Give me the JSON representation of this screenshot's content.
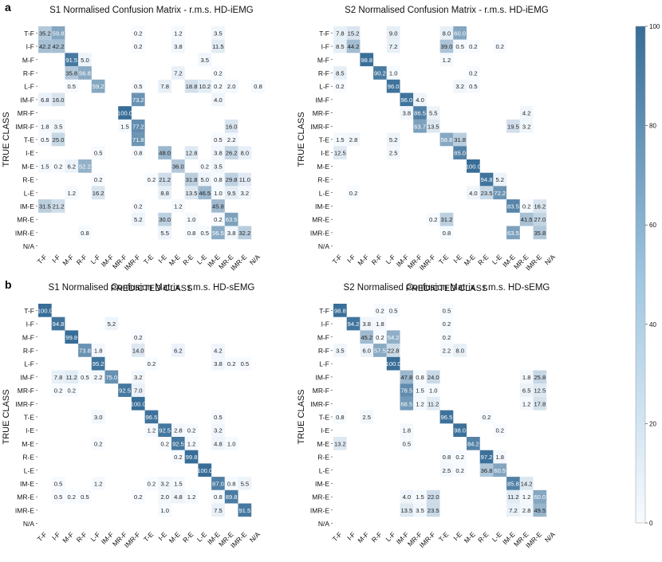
{
  "panel_labels": [
    "a",
    "b"
  ],
  "colorbar": {
    "ticks": [
      "0",
      "20",
      "40",
      "60",
      "80",
      "100"
    ],
    "min": 0,
    "max": 100,
    "color_low": "#f7fbff",
    "color_high": "#376d97"
  },
  "classes": [
    "T-F",
    "I-F",
    "M-F",
    "R-F",
    "L-F",
    "IM-F",
    "MR-F",
    "IMR-F",
    "T-E",
    "I-E",
    "M-E",
    "R-E",
    "L-E",
    "IM-E",
    "MR-E",
    "IMR-E",
    "N/A"
  ],
  "chart_data": [
    {
      "type": "heatmap",
      "title": "S1 Normalised Confusion Matrix - r.m.s. HD-iEMG",
      "xlabel": "PREDICTED CLASS",
      "ylabel": "TRUE CLASS",
      "value_range": [
        0,
        100
      ],
      "cells": [
        [
          0,
          0,
          35.2
        ],
        [
          0,
          1,
          59.8
        ],
        [
          0,
          7,
          0.2
        ],
        [
          0,
          10,
          1.2
        ],
        [
          0,
          13,
          3.5
        ],
        [
          1,
          0,
          42.2
        ],
        [
          1,
          1,
          42.2
        ],
        [
          1,
          7,
          0.2
        ],
        [
          1,
          10,
          3.8
        ],
        [
          1,
          13,
          11.5
        ],
        [
          2,
          2,
          91.5
        ],
        [
          2,
          3,
          5.0
        ],
        [
          2,
          12,
          3.5
        ],
        [
          3,
          2,
          35.8
        ],
        [
          3,
          3,
          56.8
        ],
        [
          3,
          10,
          7.2
        ],
        [
          3,
          13,
          0.2
        ],
        [
          4,
          2,
          0.5
        ],
        [
          4,
          4,
          59.2
        ],
        [
          4,
          7,
          0.5
        ],
        [
          4,
          9,
          7.8
        ],
        [
          4,
          11,
          18.8
        ],
        [
          4,
          12,
          10.2
        ],
        [
          4,
          13,
          0.2
        ],
        [
          4,
          14,
          2.0
        ],
        [
          4,
          16,
          0.8
        ],
        [
          5,
          0,
          6.8
        ],
        [
          5,
          1,
          16.0
        ],
        [
          5,
          7,
          73.2
        ],
        [
          5,
          13,
          4.0
        ],
        [
          6,
          6,
          100.0
        ],
        [
          7,
          0,
          1.8
        ],
        [
          7,
          1,
          3.5
        ],
        [
          7,
          6,
          1.5
        ],
        [
          7,
          7,
          77.2
        ],
        [
          7,
          14,
          16.0
        ],
        [
          8,
          0,
          0.5
        ],
        [
          8,
          1,
          25.0
        ],
        [
          8,
          7,
          71.8
        ],
        [
          8,
          13,
          0.5
        ],
        [
          8,
          14,
          2.2
        ],
        [
          9,
          4,
          0.5
        ],
        [
          9,
          7,
          0.8
        ],
        [
          9,
          9,
          48.0
        ],
        [
          9,
          11,
          12.8
        ],
        [
          9,
          13,
          3.8
        ],
        [
          9,
          14,
          26.2
        ],
        [
          9,
          15,
          8.0
        ],
        [
          10,
          0,
          1.5
        ],
        [
          10,
          1,
          0.2
        ],
        [
          10,
          2,
          6.2
        ],
        [
          10,
          3,
          52.2
        ],
        [
          10,
          10,
          36.0
        ],
        [
          10,
          12,
          0.2
        ],
        [
          10,
          13,
          3.5
        ],
        [
          11,
          4,
          0.2
        ],
        [
          11,
          8,
          0.2
        ],
        [
          11,
          9,
          21.2
        ],
        [
          11,
          11,
          31.8
        ],
        [
          11,
          12,
          5.0
        ],
        [
          11,
          13,
          0.8
        ],
        [
          11,
          14,
          29.8
        ],
        [
          11,
          15,
          11.0
        ],
        [
          12,
          2,
          1.2
        ],
        [
          12,
          4,
          16.2
        ],
        [
          12,
          9,
          8.8
        ],
        [
          12,
          11,
          13.5
        ],
        [
          12,
          12,
          46.5
        ],
        [
          12,
          13,
          1.0
        ],
        [
          12,
          14,
          9.5
        ],
        [
          12,
          15,
          3.2
        ],
        [
          13,
          0,
          31.5
        ],
        [
          13,
          1,
          21.2
        ],
        [
          13,
          7,
          0.2
        ],
        [
          13,
          10,
          1.2
        ],
        [
          13,
          13,
          45.8
        ],
        [
          14,
          7,
          5.2
        ],
        [
          14,
          9,
          30.0
        ],
        [
          14,
          11,
          1.0
        ],
        [
          14,
          13,
          0.2
        ],
        [
          14,
          14,
          63.5
        ],
        [
          15,
          3,
          0.8
        ],
        [
          15,
          9,
          5.5
        ],
        [
          15,
          11,
          0.8
        ],
        [
          15,
          12,
          0.5
        ],
        [
          15,
          13,
          56.5
        ],
        [
          15,
          14,
          3.8
        ],
        [
          15,
          15,
          32.2
        ]
      ]
    },
    {
      "type": "heatmap",
      "title": "S2 Normalised Confusion Matrix - r.m.s. HD-iEMG",
      "xlabel": "PREDICTED CLASS",
      "ylabel": "TRUE CLASS",
      "value_range": [
        0,
        100
      ],
      "cells": [
        [
          0,
          0,
          7.8
        ],
        [
          0,
          1,
          15.2
        ],
        [
          0,
          4,
          9.0
        ],
        [
          0,
          8,
          8.0
        ],
        [
          0,
          9,
          60.0
        ],
        [
          1,
          0,
          8.5
        ],
        [
          1,
          1,
          44.2
        ],
        [
          1,
          4,
          7.2
        ],
        [
          1,
          8,
          39.0
        ],
        [
          1,
          9,
          0.5
        ],
        [
          1,
          10,
          0.2
        ],
        [
          1,
          12,
          0.2
        ],
        [
          2,
          2,
          98.8
        ],
        [
          2,
          8,
          1.2
        ],
        [
          3,
          0,
          8.5
        ],
        [
          3,
          3,
          90.2
        ],
        [
          3,
          4,
          1.0
        ],
        [
          3,
          10,
          0.2
        ],
        [
          4,
          0,
          0.2
        ],
        [
          4,
          4,
          96.0
        ],
        [
          4,
          9,
          3.2
        ],
        [
          4,
          10,
          0.5
        ],
        [
          5,
          5,
          96.0
        ],
        [
          5,
          6,
          4.0
        ],
        [
          6,
          5,
          3.8
        ],
        [
          6,
          6,
          86.5
        ],
        [
          6,
          7,
          5.5
        ],
        [
          6,
          14,
          4.2
        ],
        [
          7,
          6,
          63.7
        ],
        [
          7,
          7,
          13.5
        ],
        [
          7,
          13,
          19.5
        ],
        [
          7,
          14,
          3.2
        ],
        [
          8,
          0,
          1.5
        ],
        [
          8,
          1,
          2.8
        ],
        [
          8,
          4,
          5.2
        ],
        [
          8,
          8,
          58.8
        ],
        [
          8,
          9,
          31.8
        ],
        [
          9,
          0,
          12.5
        ],
        [
          9,
          4,
          2.5
        ],
        [
          9,
          9,
          85.0
        ],
        [
          10,
          10,
          100.0
        ],
        [
          11,
          11,
          94.8
        ],
        [
          11,
          12,
          5.2
        ],
        [
          12,
          1,
          0.2
        ],
        [
          12,
          10,
          4.0
        ],
        [
          12,
          11,
          23.5
        ],
        [
          12,
          12,
          72.2
        ],
        [
          13,
          13,
          83.5
        ],
        [
          13,
          14,
          0.2
        ],
        [
          13,
          15,
          16.2
        ],
        [
          14,
          7,
          0.2
        ],
        [
          14,
          8,
          31.2
        ],
        [
          14,
          14,
          41.5
        ],
        [
          14,
          15,
          27.0
        ],
        [
          15,
          8,
          0.8
        ],
        [
          15,
          13,
          63.5
        ],
        [
          15,
          15,
          35.8
        ]
      ]
    },
    {
      "type": "heatmap",
      "title": "S1 Normalised Confusion Matrix - r.m.s. HD-sEMG",
      "xlabel": "PREDICTED CLASS",
      "ylabel": "TRUE CLASS",
      "value_range": [
        0,
        100
      ],
      "cells": [
        [
          0,
          0,
          100.0
        ],
        [
          1,
          1,
          94.8
        ],
        [
          1,
          5,
          5.2
        ],
        [
          2,
          2,
          99.8
        ],
        [
          2,
          7,
          0.2
        ],
        [
          3,
          3,
          73.8
        ],
        [
          3,
          4,
          1.8
        ],
        [
          3,
          7,
          14.0
        ],
        [
          3,
          10,
          6.2
        ],
        [
          3,
          13,
          4.2
        ],
        [
          4,
          4,
          95.2
        ],
        [
          4,
          8,
          0.2
        ],
        [
          4,
          13,
          3.8
        ],
        [
          4,
          14,
          0.2
        ],
        [
          4,
          15,
          0.5
        ],
        [
          5,
          1,
          7.8
        ],
        [
          5,
          2,
          11.2
        ],
        [
          5,
          3,
          0.5
        ],
        [
          5,
          4,
          2.2
        ],
        [
          5,
          5,
          75.0
        ],
        [
          5,
          7,
          3.2
        ],
        [
          6,
          1,
          0.2
        ],
        [
          6,
          2,
          0.2
        ],
        [
          6,
          6,
          92.5
        ],
        [
          6,
          7,
          7.0
        ],
        [
          7,
          7,
          100.0
        ],
        [
          8,
          4,
          3.0
        ],
        [
          8,
          8,
          96.5
        ],
        [
          8,
          13,
          0.5
        ],
        [
          9,
          8,
          1.2
        ],
        [
          9,
          9,
          92.5
        ],
        [
          9,
          10,
          2.8
        ],
        [
          9,
          11,
          0.2
        ],
        [
          9,
          13,
          3.2
        ],
        [
          10,
          4,
          0.2
        ],
        [
          10,
          9,
          0.2
        ],
        [
          10,
          10,
          92.5
        ],
        [
          10,
          11,
          1.2
        ],
        [
          10,
          13,
          4.8
        ],
        [
          10,
          14,
          1.0
        ],
        [
          11,
          10,
          0.2
        ],
        [
          11,
          11,
          99.8
        ],
        [
          12,
          12,
          100.0
        ],
        [
          13,
          1,
          0.5
        ],
        [
          13,
          4,
          1.2
        ],
        [
          13,
          8,
          0.2
        ],
        [
          13,
          9,
          3.2
        ],
        [
          13,
          10,
          1.5
        ],
        [
          13,
          13,
          87.0
        ],
        [
          13,
          14,
          0.8
        ],
        [
          13,
          15,
          5.5
        ],
        [
          14,
          1,
          0.5
        ],
        [
          14,
          2,
          0.2
        ],
        [
          14,
          3,
          0.5
        ],
        [
          14,
          7,
          0.2
        ],
        [
          14,
          9,
          2.0
        ],
        [
          14,
          10,
          4.8
        ],
        [
          14,
          11,
          1.2
        ],
        [
          14,
          13,
          0.8
        ],
        [
          14,
          14,
          89.8
        ],
        [
          15,
          9,
          1.0
        ],
        [
          15,
          13,
          7.5
        ],
        [
          15,
          15,
          91.5
        ]
      ]
    },
    {
      "type": "heatmap",
      "title": "S2 Normalised Confusion Matrix - r.m.s. HD-sEMG",
      "xlabel": "PREDICTED CLASS",
      "ylabel": "TRUE CLASS",
      "value_range": [
        0,
        100
      ],
      "cells": [
        [
          0,
          0,
          98.8
        ],
        [
          0,
          3,
          0.2
        ],
        [
          0,
          4,
          0.5
        ],
        [
          0,
          8,
          0.5
        ],
        [
          1,
          1,
          94.2
        ],
        [
          1,
          2,
          3.8
        ],
        [
          1,
          3,
          1.8
        ],
        [
          1,
          8,
          0.2
        ],
        [
          2,
          2,
          45.2
        ],
        [
          2,
          3,
          0.2
        ],
        [
          2,
          4,
          54.2
        ],
        [
          2,
          8,
          0.2
        ],
        [
          3,
          0,
          3.5
        ],
        [
          3,
          2,
          6.0
        ],
        [
          3,
          3,
          57.5
        ],
        [
          3,
          4,
          22.8
        ],
        [
          3,
          8,
          2.2
        ],
        [
          3,
          9,
          8.0
        ],
        [
          4,
          4,
          100.0
        ],
        [
          5,
          5,
          47.8
        ],
        [
          5,
          6,
          0.8
        ],
        [
          5,
          7,
          24.0
        ],
        [
          5,
          14,
          1.8
        ],
        [
          5,
          15,
          25.8
        ],
        [
          6,
          5,
          78.5
        ],
        [
          6,
          6,
          1.5
        ],
        [
          6,
          7,
          1.0
        ],
        [
          6,
          14,
          6.5
        ],
        [
          6,
          15,
          12.5
        ],
        [
          7,
          5,
          68.5
        ],
        [
          7,
          6,
          1.2
        ],
        [
          7,
          7,
          11.2
        ],
        [
          7,
          14,
          1.2
        ],
        [
          7,
          15,
          17.8
        ],
        [
          8,
          0,
          0.8
        ],
        [
          8,
          2,
          2.5
        ],
        [
          8,
          8,
          96.5
        ],
        [
          8,
          11,
          0.2
        ],
        [
          9,
          5,
          1.8
        ],
        [
          9,
          9,
          98.0
        ],
        [
          9,
          12,
          0.2
        ],
        [
          10,
          0,
          13.2
        ],
        [
          10,
          5,
          0.5
        ],
        [
          10,
          10,
          84.2
        ],
        [
          11,
          8,
          0.8
        ],
        [
          11,
          9,
          0.2
        ],
        [
          11,
          11,
          97.2
        ],
        [
          11,
          12,
          1.8
        ],
        [
          12,
          8,
          2.5
        ],
        [
          12,
          9,
          0.2
        ],
        [
          12,
          11,
          36.8
        ],
        [
          12,
          12,
          60.5
        ],
        [
          13,
          13,
          85.8
        ],
        [
          13,
          14,
          14.2
        ],
        [
          14,
          5,
          4.0
        ],
        [
          14,
          6,
          1.5
        ],
        [
          14,
          7,
          22.0
        ],
        [
          14,
          13,
          11.2
        ],
        [
          14,
          14,
          1.2
        ],
        [
          14,
          15,
          60.0
        ],
        [
          15,
          5,
          13.5
        ],
        [
          15,
          6,
          3.5
        ],
        [
          15,
          7,
          23.5
        ],
        [
          15,
          13,
          7.2
        ],
        [
          15,
          14,
          2.8
        ],
        [
          15,
          15,
          49.5
        ]
      ]
    }
  ]
}
